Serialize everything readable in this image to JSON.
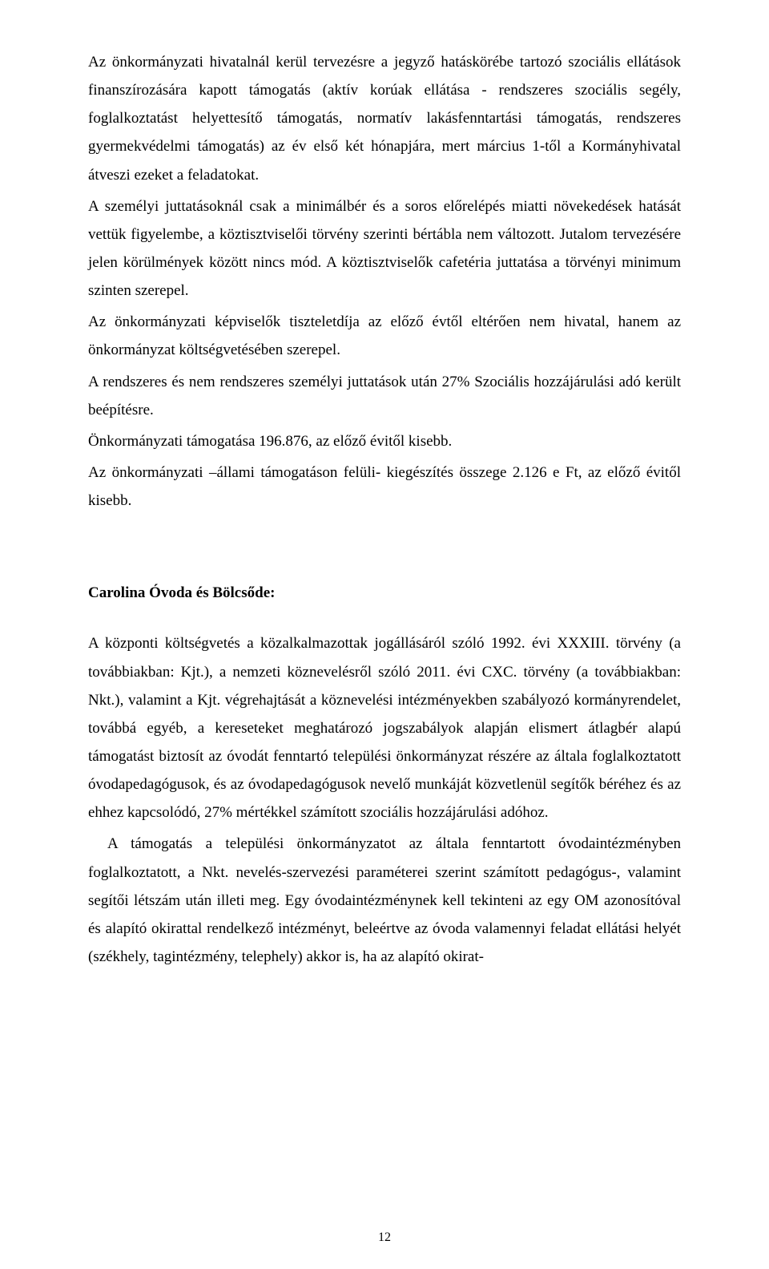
{
  "body": {
    "p1": "Az önkormányzati hivatalnál kerül tervezésre a jegyző hatáskörébe tartozó szociális ellátások finanszírozására kapott támogatás (aktív korúak ellátása - rendszeres szociális segély, foglalkoztatást helyettesítő támogatás, normatív lakásfenntartási támogatás, rendszeres gyermekvédelmi támogatás)  az év első két hónapjára, mert március 1-től a Kormányhivatal átveszi ezeket a feladatokat.",
    "p2": "A személyi juttatásoknál csak a minimálbér és a soros előrelépés miatti növekedések hatását vettük figyelembe, a köztisztviselői törvény szerinti bértábla nem változott. Jutalom tervezésére jelen körülmények között nincs mód. A köztisztviselők cafetéria juttatása a törvényi minimum szinten szerepel.",
    "p3": "Az önkormányzati képviselők tiszteletdíja az előző évtől eltérően nem hivatal, hanem az önkormányzat költségvetésében szerepel.",
    "p4": "A rendszeres és nem rendszeres személyi juttatások után 27% Szociális hozzájárulási adó került beépítésre.",
    "p5": "Önkormányzati támogatása 196.876, az előző évitől kisebb.",
    "p6": "Az önkormányzati –állami támogatáson felüli- kiegészítés összege 2.126 e Ft, az előző évitől kisebb."
  },
  "section2": {
    "heading": "Carolina Óvoda és Bölcsőde:",
    "p1": "A központi költségvetés a közalkalmazottak jogállásáról szóló 1992. évi XXXIII. törvény (a továbbiakban: Kjt.), a nemzeti köznevelésről szóló 2011. évi CXC. törvény (a továbbiakban: Nkt.), valamint a Kjt. végrehajtását a köznevelési intézményekben szabályozó kormányrendelet, továbbá egyéb, a kereseteket meghatározó jogszabályok alapján elismert átlagbér alapú támogatást biztosít az óvodát fenntartó települési önkormányzat részére az általa foglalkoztatott óvodapedagógusok, és az óvodapedagógusok nevelő munkáját közvetlenül segítők béréhez és az ehhez kapcsolódó, 27% mértékkel számított szociális hozzájárulási adóhoz.",
    "p2": "A támogatás a települési önkormányzatot az általa fenntartott óvodaintézményben foglalkoztatott, a Nkt. nevelés-szervezési paraméterei szerint számított pedagógus-, valamint segítői létszám után illeti meg. Egy óvodaintézménynek kell tekinteni az egy OM azonosítóval és alapító okirattal rendelkező intézményt, beleértve az óvoda valamennyi feladat ellátási helyét (székhely, tagintézmény, telephely) akkor is, ha az alapító okirat-"
  },
  "pageNumber": "12"
}
